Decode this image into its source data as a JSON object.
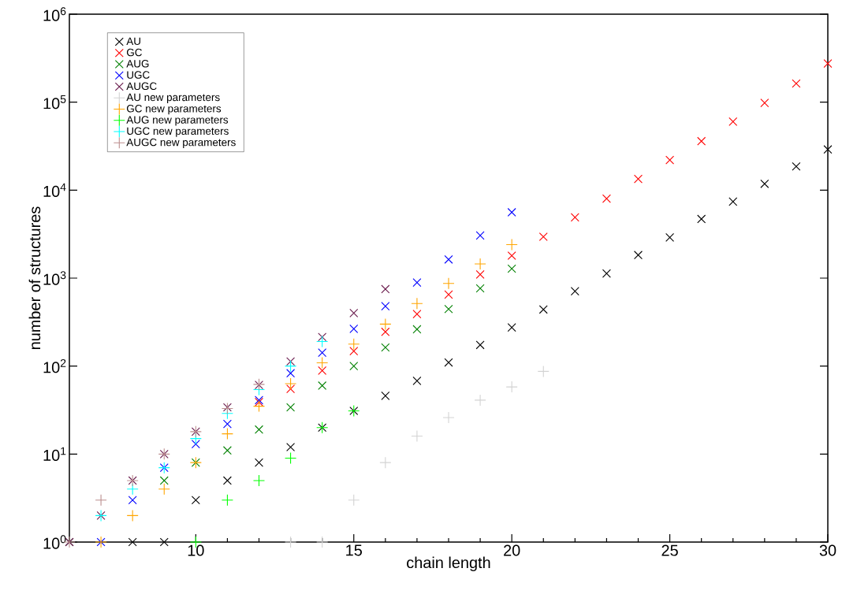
{
  "chart_data": {
    "type": "scatter",
    "xlabel": "chain length",
    "ylabel": "number of structures",
    "log": "y",
    "grid": false,
    "legend": "top left",
    "xlim": [
      6,
      30
    ],
    "xticks": [
      10,
      15,
      20,
      25,
      30
    ],
    "ylim": [
      1,
      1000000
    ],
    "yticks": [
      {
        "value": 1,
        "label": "10$^{0}$"
      },
      {
        "value": 10,
        "label": "10$^{1}$"
      },
      {
        "value": 100,
        "label": "10$^{2}$"
      },
      {
        "value": 1000,
        "label": "10$^{3}$"
      },
      {
        "value": 10000,
        "label": "10$^{4}$"
      },
      {
        "value": 100000,
        "label": "10$^{5}$"
      },
      {
        "value": 1000000,
        "label": "10$^{6}$"
      }
    ],
    "series": [
      {
        "name": "AU",
        "color": "#000000",
        "marker": "cross",
        "x": [
          6,
          7,
          8,
          9,
          10,
          11,
          12,
          13,
          14,
          15,
          16,
          17,
          18,
          19,
          20,
          21,
          22,
          23,
          24,
          25,
          26,
          27,
          28,
          29,
          30
        ],
        "values": [
          1,
          null,
          1,
          1,
          3,
          5,
          8,
          12,
          20,
          31,
          46,
          68,
          110,
          174,
          275,
          440,
          710,
          1130,
          1830,
          2900,
          4700,
          7400,
          11800,
          18600,
          29000
        ]
      },
      {
        "name": "GC",
        "color": "#ff0000",
        "marker": "cross",
        "x": [
          12,
          13,
          14,
          15,
          16,
          17,
          18,
          19,
          20,
          21,
          22,
          23,
          24,
          25,
          26,
          27,
          28,
          29,
          30
        ],
        "values": [
          39,
          55,
          89,
          148,
          245,
          390,
          650,
          1100,
          1800,
          2950,
          4900,
          8000,
          13400,
          22000,
          36000,
          60000,
          98000,
          163000,
          275000
        ]
      },
      {
        "name": "AUG",
        "color": "#008000",
        "marker": "cross",
        "x": [
          9,
          10,
          11,
          12,
          13,
          14,
          15,
          16,
          17,
          18,
          19,
          20
        ],
        "values": [
          5,
          8,
          11,
          19,
          34,
          60,
          100,
          163,
          262,
          445,
          765,
          1280
        ]
      },
      {
        "name": "UGC",
        "color": "#0000ff",
        "marker": "cross",
        "x": [
          7,
          8,
          9,
          10,
          11,
          12,
          13,
          14,
          15,
          16,
          17,
          18,
          19,
          20
        ],
        "values": [
          1,
          3,
          7,
          13,
          22,
          41,
          83,
          142,
          265,
          480,
          890,
          1630,
          3050,
          5600
        ]
      },
      {
        "name": "AUGC",
        "color": "#6a1b4d",
        "marker": "cross",
        "x": [
          6,
          7,
          8,
          9,
          10,
          11,
          12,
          13,
          14,
          15,
          16
        ],
        "values": [
          1,
          2,
          5,
          10,
          18,
          34,
          61,
          113,
          214,
          400,
          750
        ]
      },
      {
        "name": "AU new parameters",
        "color": "#d3d3d3",
        "marker": "plus",
        "x": [
          13,
          14,
          15,
          16,
          17,
          18,
          19,
          20,
          21
        ],
        "values": [
          1,
          1,
          3,
          8,
          16,
          26,
          41,
          58,
          87
        ]
      },
      {
        "name": "GC new parameters",
        "color": "#ffa500",
        "marker": "plus",
        "x": [
          7,
          8,
          9,
          10,
          11,
          12,
          13,
          14,
          15,
          16,
          17,
          18,
          19,
          20
        ],
        "values": [
          1,
          2,
          4,
          8,
          17,
          35,
          63,
          109,
          178,
          300,
          515,
          870,
          1450,
          2400
        ]
      },
      {
        "name": "AUG new parameters",
        "color": "#00ff00",
        "marker": "plus",
        "x": [
          10,
          11,
          12,
          13,
          14,
          15
        ],
        "values": [
          1,
          3,
          5,
          9,
          20,
          31
        ]
      },
      {
        "name": "UGC new parameters",
        "color": "#00ffff",
        "marker": "plus",
        "x": [
          7,
          8,
          9,
          10,
          11,
          12,
          13,
          14
        ],
        "values": [
          2,
          4,
          7,
          15,
          29,
          54,
          100,
          190
        ]
      },
      {
        "name": "AUGC new parameters",
        "color": "#bc8f8f",
        "marker": "plus",
        "x": [
          6,
          7,
          8,
          9,
          10,
          11,
          12
        ],
        "values": [
          1,
          3,
          5,
          10,
          18,
          33,
          62
        ]
      }
    ]
  }
}
